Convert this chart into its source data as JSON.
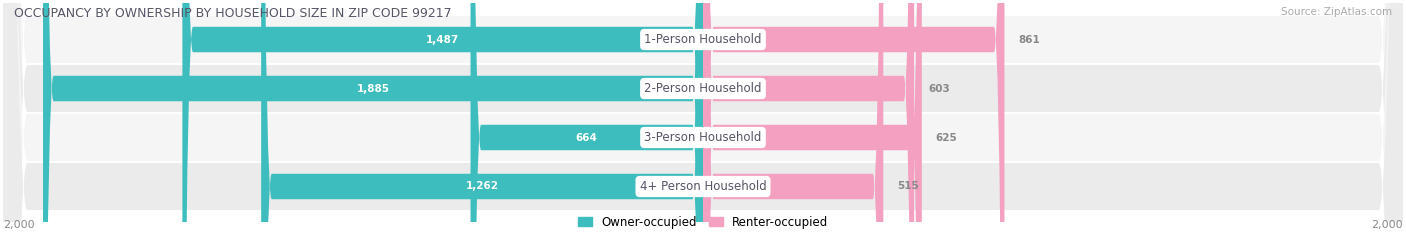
{
  "title": "OCCUPANCY BY OWNERSHIP BY HOUSEHOLD SIZE IN ZIP CODE 99217",
  "source": "Source: ZipAtlas.com",
  "categories": [
    "1-Person Household",
    "2-Person Household",
    "3-Person Household",
    "4+ Person Household"
  ],
  "owner_values": [
    1487,
    1885,
    664,
    1262
  ],
  "renter_values": [
    861,
    603,
    625,
    515
  ],
  "max_val": 2000,
  "owner_color": "#3dbdbd",
  "renter_color": "#f4a0c0",
  "background_color": "#ffffff",
  "row_bg_even": "#f5f5f5",
  "row_bg_odd": "#ebebeb",
  "axis_label": "2,000",
  "bar_height": 0.52,
  "title_color": "#555566",
  "value_color_inside": "#ffffff",
  "value_color_outside": "#888888",
  "legend_owner": "Owner-occupied",
  "legend_renter": "Renter-occupied"
}
